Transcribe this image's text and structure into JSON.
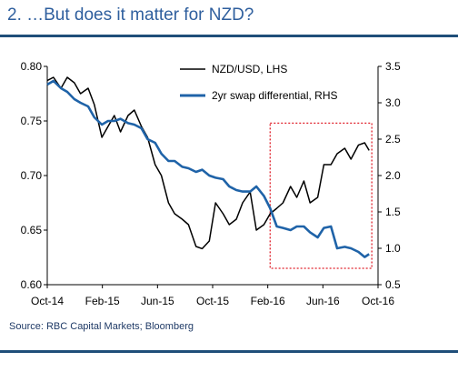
{
  "page": {
    "title": "2. …But does it matter for NZD?",
    "source": "Source: RBC Capital Markets; Bloomberg"
  },
  "colors": {
    "nzd_line": "#000000",
    "swap_line": "#1f63a8",
    "highlight_box": "#e0202a",
    "title_text": "#2f5f9e",
    "rule": "#1f4e79"
  },
  "chart_data": {
    "type": "line",
    "x_ticks": [
      "Oct-14",
      "Feb-15",
      "Jun-15",
      "Oct-15",
      "Feb-16",
      "Jun-16",
      "Oct-16"
    ],
    "x_range": [
      "2014-10-01",
      "2016-10-15"
    ],
    "y_left": {
      "label": "",
      "range": [
        0.6,
        0.8
      ],
      "ticks": [
        "0.60",
        "0.65",
        "0.70",
        "0.75",
        "0.80"
      ]
    },
    "y_right": {
      "label": "",
      "range": [
        0.5,
        3.5
      ],
      "ticks": [
        "0.5",
        "1.0",
        "1.5",
        "2.0",
        "2.5",
        "3.0",
        "3.5"
      ]
    },
    "grid": false,
    "legend_position": "top-right",
    "series": [
      {
        "name": "NZD/USD, LHS",
        "axis": "left",
        "color": "#000000",
        "points": [
          [
            "2014-10-01",
            0.787
          ],
          [
            "2014-10-15",
            0.79
          ],
          [
            "2014-11-01",
            0.78
          ],
          [
            "2014-11-15",
            0.79
          ],
          [
            "2014-12-01",
            0.785
          ],
          [
            "2014-12-15",
            0.775
          ],
          [
            "2015-01-01",
            0.78
          ],
          [
            "2015-01-15",
            0.765
          ],
          [
            "2015-02-01",
            0.735
          ],
          [
            "2015-02-15",
            0.745
          ],
          [
            "2015-03-01",
            0.755
          ],
          [
            "2015-03-15",
            0.74
          ],
          [
            "2015-04-01",
            0.755
          ],
          [
            "2015-04-15",
            0.76
          ],
          [
            "2015-05-01",
            0.745
          ],
          [
            "2015-05-15",
            0.735
          ],
          [
            "2015-06-01",
            0.71
          ],
          [
            "2015-06-15",
            0.7
          ],
          [
            "2015-07-01",
            0.675
          ],
          [
            "2015-07-15",
            0.665
          ],
          [
            "2015-08-01",
            0.66
          ],
          [
            "2015-08-15",
            0.655
          ],
          [
            "2015-09-01",
            0.635
          ],
          [
            "2015-09-15",
            0.633
          ],
          [
            "2015-10-01",
            0.64
          ],
          [
            "2015-10-15",
            0.675
          ],
          [
            "2015-11-01",
            0.665
          ],
          [
            "2015-11-15",
            0.655
          ],
          [
            "2015-12-01",
            0.66
          ],
          [
            "2015-12-15",
            0.675
          ],
          [
            "2016-01-01",
            0.685
          ],
          [
            "2016-01-15",
            0.65
          ],
          [
            "2016-02-01",
            0.655
          ],
          [
            "2016-02-15",
            0.665
          ],
          [
            "2016-03-01",
            0.67
          ],
          [
            "2016-03-15",
            0.675
          ],
          [
            "2016-04-01",
            0.69
          ],
          [
            "2016-04-15",
            0.68
          ],
          [
            "2016-05-01",
            0.695
          ],
          [
            "2016-05-15",
            0.675
          ],
          [
            "2016-06-01",
            0.68
          ],
          [
            "2016-06-15",
            0.71
          ],
          [
            "2016-07-01",
            0.71
          ],
          [
            "2016-07-15",
            0.72
          ],
          [
            "2016-08-01",
            0.725
          ],
          [
            "2016-08-15",
            0.715
          ],
          [
            "2016-09-01",
            0.728
          ],
          [
            "2016-09-15",
            0.73
          ],
          [
            "2016-09-25",
            0.723
          ]
        ]
      },
      {
        "name": "2yr swap differential, RHS",
        "axis": "right",
        "color": "#1f63a8",
        "points": [
          [
            "2014-10-01",
            3.25
          ],
          [
            "2014-10-15",
            3.3
          ],
          [
            "2014-11-01",
            3.2
          ],
          [
            "2014-11-15",
            3.15
          ],
          [
            "2014-12-01",
            3.05
          ],
          [
            "2014-12-15",
            3.0
          ],
          [
            "2015-01-01",
            2.95
          ],
          [
            "2015-01-15",
            2.8
          ],
          [
            "2015-02-01",
            2.7
          ],
          [
            "2015-02-15",
            2.75
          ],
          [
            "2015-03-01",
            2.75
          ],
          [
            "2015-03-15",
            2.78
          ],
          [
            "2015-04-01",
            2.72
          ],
          [
            "2015-04-15",
            2.7
          ],
          [
            "2015-05-01",
            2.65
          ],
          [
            "2015-05-15",
            2.5
          ],
          [
            "2015-06-01",
            2.45
          ],
          [
            "2015-06-15",
            2.3
          ],
          [
            "2015-07-01",
            2.2
          ],
          [
            "2015-07-15",
            2.2
          ],
          [
            "2015-08-01",
            2.12
          ],
          [
            "2015-08-15",
            2.1
          ],
          [
            "2015-09-01",
            2.05
          ],
          [
            "2015-09-15",
            2.08
          ],
          [
            "2015-10-01",
            2.0
          ],
          [
            "2015-10-15",
            1.97
          ],
          [
            "2015-11-01",
            1.95
          ],
          [
            "2015-11-15",
            1.85
          ],
          [
            "2015-12-01",
            1.8
          ],
          [
            "2015-12-15",
            1.78
          ],
          [
            "2016-01-01",
            1.78
          ],
          [
            "2016-01-15",
            1.85
          ],
          [
            "2016-02-01",
            1.72
          ],
          [
            "2016-02-15",
            1.55
          ],
          [
            "2016-03-01",
            1.3
          ],
          [
            "2016-03-15",
            1.28
          ],
          [
            "2016-04-01",
            1.25
          ],
          [
            "2016-04-15",
            1.3
          ],
          [
            "2016-05-01",
            1.3
          ],
          [
            "2016-05-15",
            1.22
          ],
          [
            "2016-06-01",
            1.15
          ],
          [
            "2016-06-15",
            1.28
          ],
          [
            "2016-07-01",
            1.3
          ],
          [
            "2016-07-15",
            1.0
          ],
          [
            "2016-08-01",
            1.02
          ],
          [
            "2016-08-15",
            1.0
          ],
          [
            "2016-09-01",
            0.95
          ],
          [
            "2016-09-15",
            0.88
          ],
          [
            "2016-09-25",
            0.92
          ]
        ]
      }
    ],
    "annotations": [
      {
        "type": "dashed-box",
        "x_range": [
          "2016-02-15",
          "2016-10-01"
        ],
        "y_left_range": [
          0.615,
          0.748
        ]
      }
    ]
  }
}
